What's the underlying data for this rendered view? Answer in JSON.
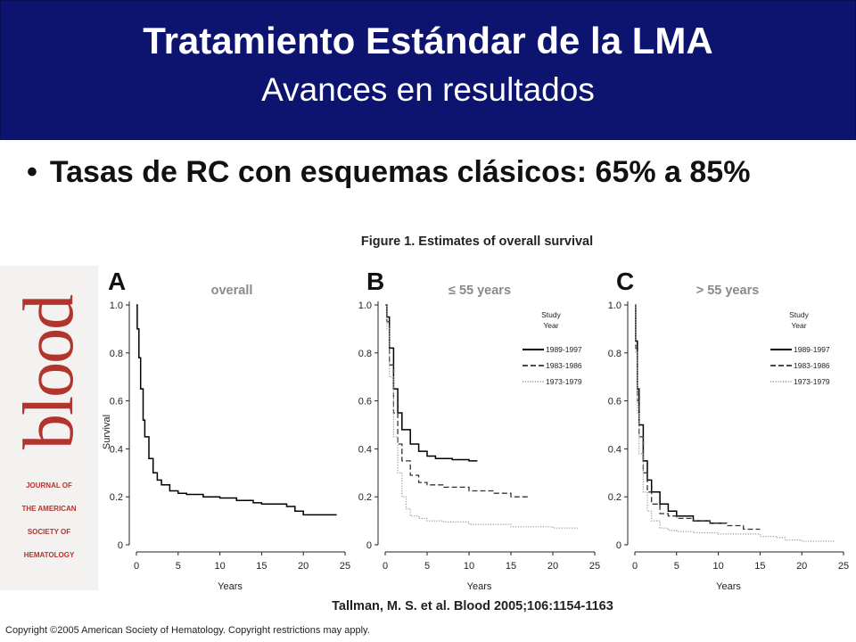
{
  "header": {
    "title": "Tratamiento Estándar de la LMA",
    "subtitle": "Avances en resultados"
  },
  "bullet": {
    "dot": "•",
    "text": "Tasas de RC con esquemas clásicos: 65% a 85%"
  },
  "figure_title": "Figure 1. Estimates of overall survival",
  "logo": {
    "word": "blood",
    "lines": [
      "JOURNAL OF",
      "THE AMERICAN",
      "SOCIETY OF",
      "HEMATOLOGY"
    ]
  },
  "citation": "Tallman, M. S. et al. Blood 2005;106:1154-1163",
  "copyright": "Copyright ©2005 American Society of Hematology.  Copyright restrictions may apply.",
  "colors": {
    "header_bg": "#0d1470",
    "logo_red": "#b1342d",
    "series_1989": "#000000",
    "series_1983": "#333333",
    "series_1973": "#999999"
  },
  "chart_data": [
    {
      "type": "line",
      "letter": "A",
      "label": "overall",
      "ylabel": "Survival",
      "xlabel": "Years",
      "xlim": [
        0,
        25
      ],
      "ylim": [
        0,
        1.0
      ],
      "xticks": [
        "0",
        "5",
        "10",
        "15",
        "20",
        "25"
      ],
      "yticks": [
        "0",
        "0.2",
        "0.4",
        "0.6",
        "0.8",
        "1.0"
      ],
      "legend_title": [],
      "series": [
        {
          "name": "",
          "style": "solid",
          "x": [
            0,
            0.1,
            0.3,
            0.5,
            0.8,
            1,
            1.5,
            2,
            2.5,
            3,
            4,
            5,
            6,
            8,
            10,
            12,
            14,
            15,
            17,
            18,
            19,
            20,
            24
          ],
          "y": [
            1.0,
            0.9,
            0.78,
            0.65,
            0.52,
            0.45,
            0.36,
            0.3,
            0.27,
            0.25,
            0.225,
            0.215,
            0.21,
            0.2,
            0.195,
            0.185,
            0.175,
            0.17,
            0.17,
            0.16,
            0.14,
            0.125,
            0.125
          ]
        }
      ]
    },
    {
      "type": "line",
      "letter": "B",
      "label": "≤ 55 years",
      "ylabel": "",
      "xlabel": "Years",
      "xlim": [
        0,
        25
      ],
      "ylim": [
        0,
        1.0
      ],
      "xticks": [
        "0",
        "5",
        "10",
        "15",
        "20",
        "25"
      ],
      "yticks": [
        "0",
        "0.2",
        "0.4",
        "0.6",
        "0.8",
        "1.0"
      ],
      "legend_title": [
        "Study",
        "Year"
      ],
      "series": [
        {
          "name": "1989-1997",
          "style": "solid",
          "x": [
            0,
            0.2,
            0.5,
            1,
            1.5,
            2,
            3,
            4,
            5,
            6,
            8,
            10,
            11
          ],
          "y": [
            1.0,
            0.95,
            0.82,
            0.65,
            0.55,
            0.48,
            0.42,
            0.39,
            0.37,
            0.36,
            0.355,
            0.35,
            0.35
          ]
        },
        {
          "name": "1983-1986",
          "style": "dashed",
          "x": [
            0,
            0.2,
            0.5,
            1,
            1.5,
            2,
            3,
            4,
            5,
            7,
            10,
            13,
            15,
            17
          ],
          "y": [
            1.0,
            0.93,
            0.75,
            0.55,
            0.42,
            0.35,
            0.29,
            0.26,
            0.25,
            0.24,
            0.225,
            0.215,
            0.2,
            0.2
          ]
        },
        {
          "name": "1973-1979",
          "style": "dotted",
          "x": [
            0,
            0.2,
            0.5,
            1,
            1.5,
            2,
            2.5,
            3,
            4,
            5,
            7,
            10,
            15,
            20,
            23
          ],
          "y": [
            1.0,
            0.9,
            0.7,
            0.45,
            0.3,
            0.2,
            0.15,
            0.12,
            0.11,
            0.1,
            0.095,
            0.085,
            0.075,
            0.07,
            0.07
          ]
        }
      ]
    },
    {
      "type": "line",
      "letter": "C",
      "label": "> 55 years",
      "ylabel": "",
      "xlabel": "Years",
      "xlim": [
        0,
        25
      ],
      "ylim": [
        0,
        1.0
      ],
      "xticks": [
        "0",
        "5",
        "10",
        "15",
        "20",
        "25"
      ],
      "yticks": [
        "0",
        "0.2",
        "0.4",
        "0.6",
        "0.8",
        "1.0"
      ],
      "legend_title": [
        "Study",
        "Year"
      ],
      "series": [
        {
          "name": "1989-1997",
          "style": "solid",
          "x": [
            0,
            0.1,
            0.3,
            0.5,
            1,
            1.5,
            2,
            3,
            4,
            5,
            7,
            9,
            10,
            11
          ],
          "y": [
            1.0,
            0.85,
            0.65,
            0.5,
            0.35,
            0.27,
            0.22,
            0.17,
            0.14,
            0.12,
            0.1,
            0.09,
            0.09,
            0.09
          ]
        },
        {
          "name": "1983-1986",
          "style": "dashed",
          "x": [
            0,
            0.1,
            0.3,
            0.5,
            1,
            1.5,
            2,
            3,
            4,
            5,
            7,
            9,
            11,
            13,
            15
          ],
          "y": [
            1.0,
            0.82,
            0.6,
            0.45,
            0.3,
            0.22,
            0.17,
            0.13,
            0.12,
            0.11,
            0.1,
            0.09,
            0.08,
            0.065,
            0.065
          ]
        },
        {
          "name": "1973-1979",
          "style": "dotted",
          "x": [
            0,
            0.1,
            0.3,
            0.5,
            1,
            1.5,
            2,
            3,
            4,
            5,
            7,
            10,
            15,
            17,
            18,
            20,
            24
          ],
          "y": [
            1.0,
            0.8,
            0.55,
            0.38,
            0.22,
            0.14,
            0.1,
            0.07,
            0.06,
            0.055,
            0.05,
            0.045,
            0.035,
            0.03,
            0.02,
            0.015,
            0.015
          ]
        }
      ]
    }
  ]
}
